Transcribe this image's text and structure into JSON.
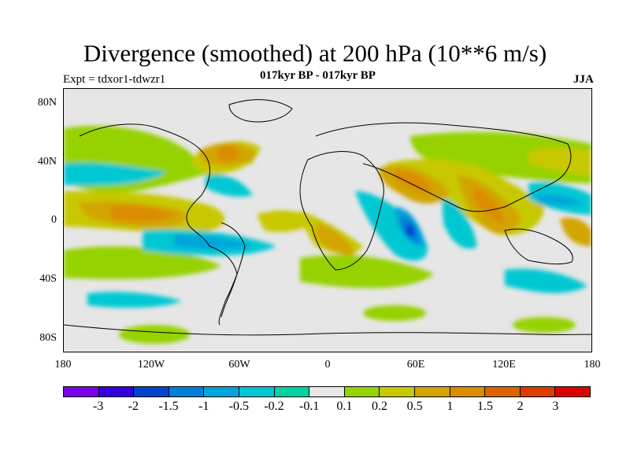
{
  "title": "Divergence (smoothed) at 200 hPa (10**6 m/s)",
  "expt": "Expt = tdxor1-tdwzr1",
  "period": "017kyr BP - 017kyr BP",
  "season": "JJA",
  "map": {
    "projection": "cylindrical equidistant",
    "background_color": "#e6e6e6",
    "lat_labels": [
      "80N",
      "40N",
      "0",
      "40S",
      "80S"
    ],
    "lon_labels": [
      "180",
      "120W",
      "60W",
      "0",
      "60E",
      "120E",
      "180"
    ]
  },
  "legend": {
    "colors": [
      "#7a00e6",
      "#3300dd",
      "#0044cc",
      "#007fd9",
      "#00a5dc",
      "#00c8d2",
      "#00d4a0",
      "#e6e6e6",
      "#96d200",
      "#c8c800",
      "#d2a500",
      "#dc8c00",
      "#dc6400",
      "#dc3c00",
      "#dc0000"
    ],
    "labels": [
      "-3",
      "-2",
      "-1.5",
      "-1",
      "-0.5",
      "-0.2",
      "-0.1",
      "0.1",
      "0.2",
      "0.5",
      "1",
      "1.5",
      "2",
      "3"
    ]
  }
}
